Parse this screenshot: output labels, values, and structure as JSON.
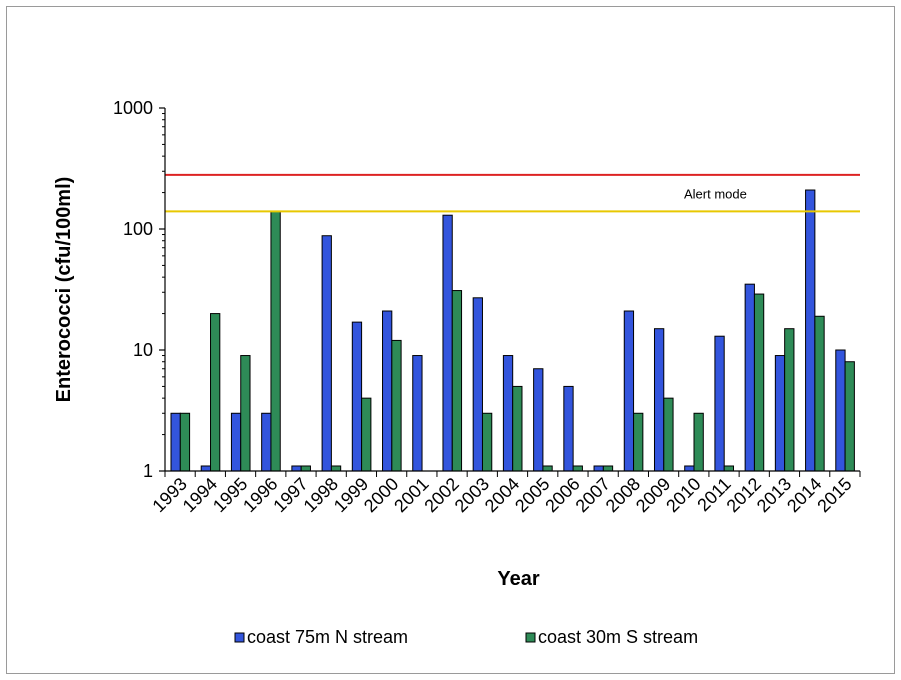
{
  "chart_data": {
    "type": "bar",
    "title": "",
    "xlabel": "Year",
    "ylabel": "Enterococci (cfu/100ml)",
    "yscale": "log",
    "ylim": [
      1,
      1000
    ],
    "yticks": [
      "1",
      "10",
      "100",
      "1000"
    ],
    "grid": false,
    "legend_position": "bottom",
    "categories": [
      "1993",
      "1994",
      "1995",
      "1996",
      "1997",
      "1998",
      "1999",
      "2000",
      "2001",
      "2002",
      "2003",
      "2004",
      "2005",
      "2006",
      "2007",
      "2008",
      "2009",
      "2010",
      "2011",
      "2012",
      "2013",
      "2014",
      "2015"
    ],
    "series": [
      {
        "name": "coast 75m N stream",
        "color": "#3355dd",
        "values": [
          3,
          1.1,
          3,
          3,
          1.1,
          88,
          17,
          21,
          9,
          130,
          27,
          9,
          7,
          5,
          1.1,
          21,
          15,
          1.1,
          13,
          35,
          9,
          210,
          10
        ]
      },
      {
        "name": "coast 30m S stream",
        "color": "#2e8b57",
        "values": [
          3,
          20,
          9,
          140,
          1.1,
          1.1,
          4,
          12,
          null,
          31,
          3,
          5,
          1.1,
          1.1,
          1.1,
          3,
          4,
          3,
          1.1,
          29,
          15,
          19,
          8
        ]
      }
    ],
    "reference_lines": [
      {
        "value": 280,
        "color": "#dd2222",
        "label": ""
      },
      {
        "value": 140,
        "color": "#e8c800",
        "label": "Alert mode"
      }
    ]
  }
}
